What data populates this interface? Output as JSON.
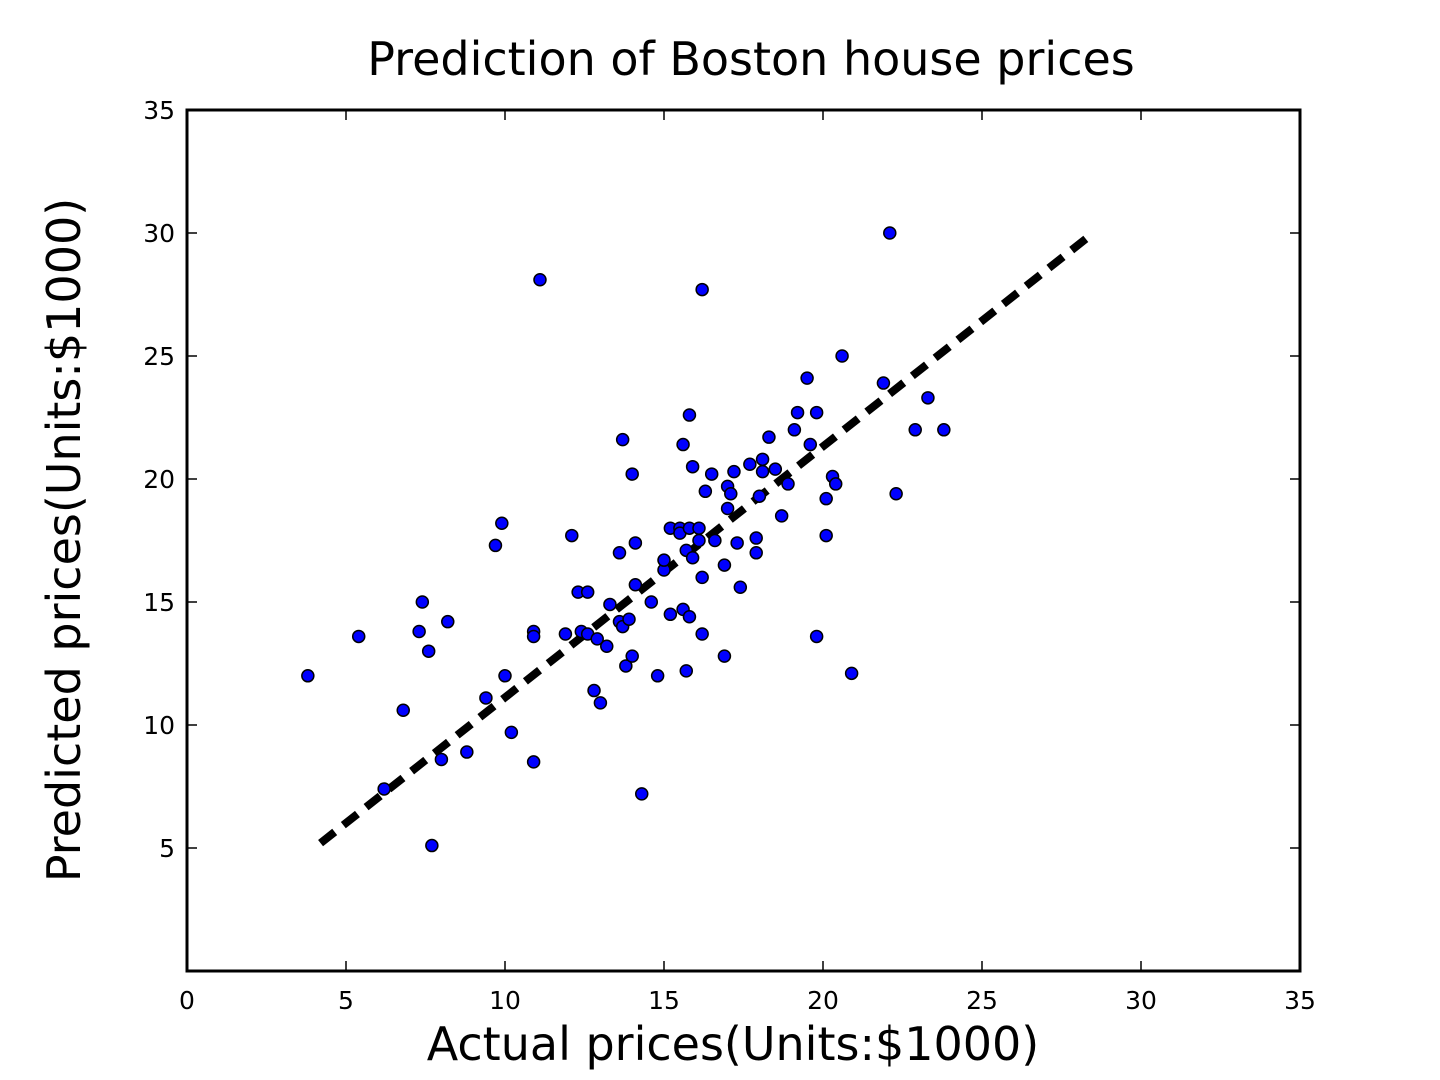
{
  "chart_data": {
    "type": "scatter",
    "title": "Prediction of Boston house prices",
    "xlabel": "Actual prices(Units:$1000)",
    "ylabel": "Predicted prices(Units:$1000)",
    "xlim": [
      0,
      35
    ],
    "ylim": [
      0,
      35
    ],
    "xticks": [
      "0",
      "5",
      "10",
      "15",
      "20",
      "25",
      "30",
      "35"
    ],
    "yticks": [
      "5",
      "10",
      "15",
      "20",
      "25",
      "30",
      "35"
    ],
    "grid": false,
    "marker_color": "#0000ff",
    "line_color": "#000000",
    "fit_line": {
      "style": "dashed",
      "x": [
        4.2,
        28.5
      ],
      "y": [
        5.2,
        30.0
      ]
    },
    "points": [
      [
        3.8,
        12.0
      ],
      [
        5.4,
        13.6
      ],
      [
        6.2,
        7.4
      ],
      [
        6.8,
        10.6
      ],
      [
        7.3,
        13.8
      ],
      [
        7.4,
        15.0
      ],
      [
        7.6,
        13.0
      ],
      [
        7.7,
        5.1
      ],
      [
        8.0,
        8.6
      ],
      [
        8.2,
        14.2
      ],
      [
        8.8,
        8.9
      ],
      [
        9.4,
        11.1
      ],
      [
        9.7,
        17.3
      ],
      [
        9.9,
        18.2
      ],
      [
        10.0,
        12.0
      ],
      [
        10.2,
        9.7
      ],
      [
        10.9,
        13.8
      ],
      [
        10.9,
        13.6
      ],
      [
        10.9,
        8.5
      ],
      [
        11.1,
        28.1
      ],
      [
        11.9,
        13.7
      ],
      [
        12.1,
        17.7
      ],
      [
        12.3,
        15.4
      ],
      [
        12.4,
        13.8
      ],
      [
        12.6,
        15.4
      ],
      [
        12.6,
        13.7
      ],
      [
        12.8,
        11.4
      ],
      [
        12.9,
        13.5
      ],
      [
        13.0,
        10.9
      ],
      [
        13.2,
        13.2
      ],
      [
        13.3,
        14.9
      ],
      [
        13.6,
        17.0
      ],
      [
        13.6,
        14.2
      ],
      [
        13.7,
        21.6
      ],
      [
        13.7,
        14.0
      ],
      [
        13.8,
        12.4
      ],
      [
        13.9,
        14.3
      ],
      [
        14.0,
        20.2
      ],
      [
        14.0,
        12.8
      ],
      [
        14.1,
        17.4
      ],
      [
        14.1,
        15.7
      ],
      [
        14.3,
        7.2
      ],
      [
        14.6,
        15.0
      ],
      [
        14.8,
        12.0
      ],
      [
        15.0,
        16.3
      ],
      [
        15.0,
        16.7
      ],
      [
        15.2,
        18.0
      ],
      [
        15.2,
        14.5
      ],
      [
        15.5,
        18.0
      ],
      [
        15.5,
        17.8
      ],
      [
        15.6,
        14.7
      ],
      [
        15.6,
        21.4
      ],
      [
        15.7,
        12.2
      ],
      [
        15.7,
        17.1
      ],
      [
        15.8,
        14.4
      ],
      [
        15.8,
        18.0
      ],
      [
        15.8,
        22.6
      ],
      [
        15.9,
        20.5
      ],
      [
        15.9,
        16.8
      ],
      [
        16.1,
        17.5
      ],
      [
        16.1,
        18.0
      ],
      [
        16.2,
        16.0
      ],
      [
        16.2,
        13.7
      ],
      [
        16.2,
        27.7
      ],
      [
        16.3,
        19.5
      ],
      [
        16.5,
        20.2
      ],
      [
        16.6,
        17.5
      ],
      [
        16.9,
        12.8
      ],
      [
        16.9,
        16.5
      ],
      [
        17.0,
        18.8
      ],
      [
        17.0,
        19.7
      ],
      [
        17.1,
        19.4
      ],
      [
        17.2,
        20.3
      ],
      [
        17.3,
        17.4
      ],
      [
        17.4,
        15.6
      ],
      [
        17.7,
        20.6
      ],
      [
        17.9,
        17.6
      ],
      [
        17.9,
        17.0
      ],
      [
        18.0,
        19.3
      ],
      [
        18.1,
        20.8
      ],
      [
        18.1,
        20.3
      ],
      [
        18.3,
        21.7
      ],
      [
        18.5,
        20.4
      ],
      [
        18.7,
        18.5
      ],
      [
        18.9,
        19.8
      ],
      [
        19.1,
        22.0
      ],
      [
        19.2,
        22.7
      ],
      [
        19.5,
        24.1
      ],
      [
        19.6,
        21.4
      ],
      [
        19.8,
        13.6
      ],
      [
        19.8,
        22.7
      ],
      [
        20.1,
        19.2
      ],
      [
        20.1,
        17.7
      ],
      [
        20.3,
        20.1
      ],
      [
        20.4,
        19.8
      ],
      [
        20.6,
        25.0
      ],
      [
        20.9,
        12.1
      ],
      [
        21.9,
        23.9
      ],
      [
        22.1,
        30.0
      ],
      [
        22.3,
        19.4
      ],
      [
        22.9,
        22.0
      ],
      [
        23.3,
        23.3
      ],
      [
        23.8,
        22.0
      ]
    ]
  }
}
